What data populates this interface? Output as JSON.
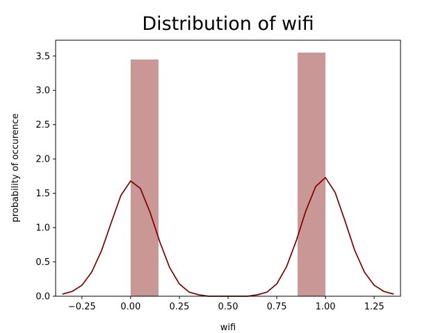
{
  "chart_data": {
    "type": "bar",
    "title": "Distribution of wifi",
    "xlabel": "wifi",
    "ylabel": "probability of occurence",
    "xlim": [
      -0.385,
      1.385
    ],
    "ylim": [
      0,
      3.73
    ],
    "x_ticks": [
      -0.25,
      0.0,
      0.25,
      0.5,
      0.75,
      1.0,
      1.25
    ],
    "x_tick_labels": [
      "−0.25",
      "0.00",
      "0.25",
      "0.50",
      "0.75",
      "1.00",
      "1.25"
    ],
    "y_ticks": [
      0.0,
      0.5,
      1.0,
      1.5,
      2.0,
      2.5,
      3.0,
      3.5
    ],
    "y_tick_labels": [
      "0.0",
      "0.5",
      "1.0",
      "1.5",
      "2.0",
      "2.5",
      "3.0",
      "3.5"
    ],
    "histogram": {
      "bins": [
        {
          "x0": 0.0,
          "x1": 0.143,
          "density": 3.45
        },
        {
          "x0": 0.857,
          "x1": 1.0,
          "density": 3.55
        }
      ],
      "color": "#c99796"
    },
    "kde": {
      "color": "#7b0000",
      "x": [
        -0.35,
        -0.3,
        -0.25,
        -0.2,
        -0.15,
        -0.1,
        -0.05,
        0.0,
        0.05,
        0.1,
        0.15,
        0.2,
        0.25,
        0.3,
        0.35,
        0.4,
        0.45,
        0.5,
        0.55,
        0.6,
        0.65,
        0.7,
        0.75,
        0.8,
        0.85,
        0.9,
        0.95,
        1.0,
        1.05,
        1.1,
        1.15,
        1.2,
        1.25,
        1.3,
        1.35
      ],
      "y": [
        0.03,
        0.07,
        0.16,
        0.35,
        0.66,
        1.07,
        1.47,
        1.68,
        1.57,
        1.22,
        0.79,
        0.42,
        0.18,
        0.06,
        0.02,
        0.0,
        0.0,
        0.0,
        0.0,
        0.0,
        0.02,
        0.06,
        0.18,
        0.43,
        0.81,
        1.25,
        1.6,
        1.73,
        1.51,
        1.1,
        0.67,
        0.35,
        0.16,
        0.07,
        0.03
      ]
    },
    "grid": false,
    "legend": "none"
  }
}
